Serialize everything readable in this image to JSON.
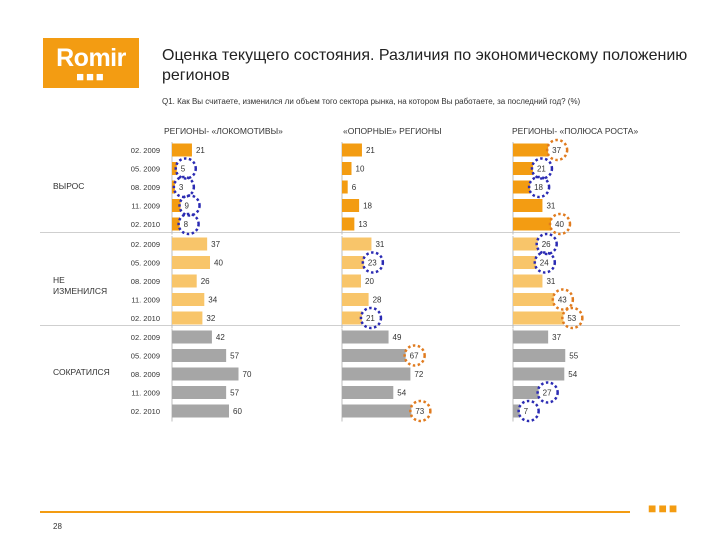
{
  "logo": {
    "text": "Romir",
    "dots": "■■■"
  },
  "title": "Оценка текущего состояния. Различия по экономическому положению регионов",
  "question": "Q1. Как Вы считаете, изменился ли объем того сектора рынка, на котором Вы работаете, за последний год? (%)",
  "page_number": "28",
  "footer_dots": "■■■",
  "colors": {
    "brand": "#f39c12",
    "grow": "#f39c12",
    "same": "#f8c56a",
    "decline": "#a6a6a6",
    "marker_blue": "#2b2bb3",
    "marker_orange": "#e07b1f"
  },
  "groups": [
    "ВЫРОС",
    "НЕ ИЗМЕНИЛСЯ",
    "СОКРАТИЛСЯ"
  ],
  "chart_data": {
    "type": "bar",
    "categories": [
      "02. 2009",
      "05. 2009",
      "08. 2009",
      "11. 2009",
      "02. 2010"
    ],
    "columns": [
      "РЕГИОНЫ- «ЛОКОМОТИВЫ»",
      "«ОПОРНЫЕ» РЕГИОНЫ",
      "РЕГИОНЫ- «ПОЛЮСА РОСТА»"
    ],
    "series": [
      {
        "name": "ВЫРОС",
        "values": [
          [
            21,
            5,
            3,
            9,
            8
          ],
          [
            21,
            10,
            6,
            18,
            13
          ],
          [
            37,
            21,
            18,
            31,
            40
          ]
        ]
      },
      {
        "name": "НЕ ИЗМЕНИЛСЯ",
        "values": [
          [
            37,
            40,
            26,
            34,
            32
          ],
          [
            31,
            23,
            20,
            28,
            21
          ],
          [
            26,
            24,
            31,
            43,
            53
          ]
        ]
      },
      {
        "name": "СОКРАТИЛСЯ",
        "values": [
          [
            42,
            57,
            70,
            57,
            60
          ],
          [
            49,
            67,
            72,
            54,
            73
          ],
          [
            37,
            55,
            54,
            27,
            7
          ]
        ]
      }
    ],
    "highlights": [
      {
        "group": 0,
        "col": 0,
        "row": 1,
        "color": "blue"
      },
      {
        "group": 0,
        "col": 0,
        "row": 2,
        "color": "blue"
      },
      {
        "group": 0,
        "col": 0,
        "row": 3,
        "color": "blue"
      },
      {
        "group": 0,
        "col": 0,
        "row": 4,
        "color": "blue"
      },
      {
        "group": 0,
        "col": 2,
        "row": 0,
        "color": "orange"
      },
      {
        "group": 0,
        "col": 2,
        "row": 1,
        "color": "blue"
      },
      {
        "group": 0,
        "col": 2,
        "row": 2,
        "color": "blue"
      },
      {
        "group": 0,
        "col": 2,
        "row": 4,
        "color": "orange"
      },
      {
        "group": 1,
        "col": 1,
        "row": 1,
        "color": "blue"
      },
      {
        "group": 1,
        "col": 1,
        "row": 4,
        "color": "blue"
      },
      {
        "group": 1,
        "col": 2,
        "row": 0,
        "color": "blue"
      },
      {
        "group": 1,
        "col": 2,
        "row": 1,
        "color": "blue"
      },
      {
        "group": 1,
        "col": 2,
        "row": 3,
        "color": "orange"
      },
      {
        "group": 1,
        "col": 2,
        "row": 4,
        "color": "orange"
      },
      {
        "group": 2,
        "col": 1,
        "row": 1,
        "color": "orange"
      },
      {
        "group": 2,
        "col": 1,
        "row": 4,
        "color": "orange"
      },
      {
        "group": 2,
        "col": 2,
        "row": 3,
        "color": "blue"
      },
      {
        "group": 2,
        "col": 2,
        "row": 4,
        "color": "blue"
      }
    ]
  }
}
